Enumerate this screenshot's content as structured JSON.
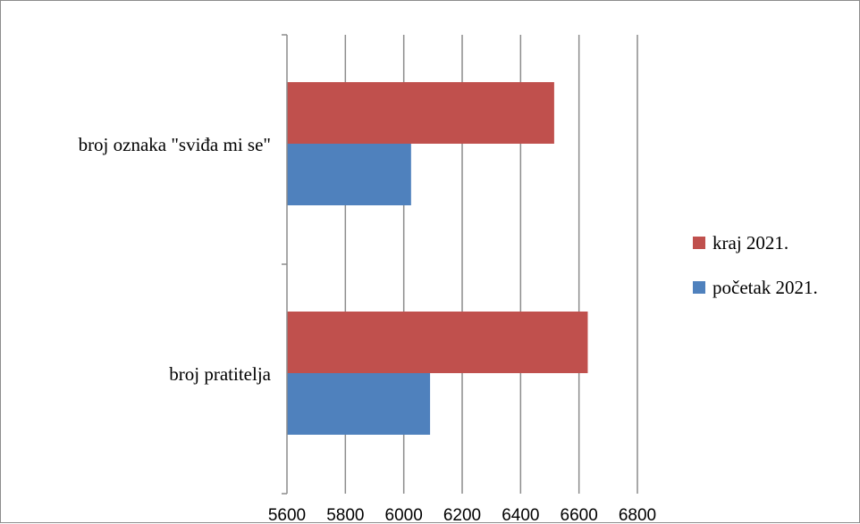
{
  "chart_data": {
    "type": "bar",
    "orientation": "horizontal",
    "categories": [
      "broj oznaka \"sviđa mi se\"",
      "broj pratitelja"
    ],
    "series": [
      {
        "name": "kraj 2021.",
        "color": "#c0504d",
        "values": [
          6515,
          6630
        ]
      },
      {
        "name": "početak 2021.",
        "color": "#4f81bd",
        "values": [
          6025,
          6090
        ]
      }
    ],
    "xlim": [
      5600,
      6800
    ],
    "xticks": [
      5600,
      5800,
      6000,
      6200,
      6400,
      6600,
      6800
    ],
    "grid": true,
    "legend_position": "right",
    "title": "",
    "xlabel": "",
    "ylabel": ""
  }
}
